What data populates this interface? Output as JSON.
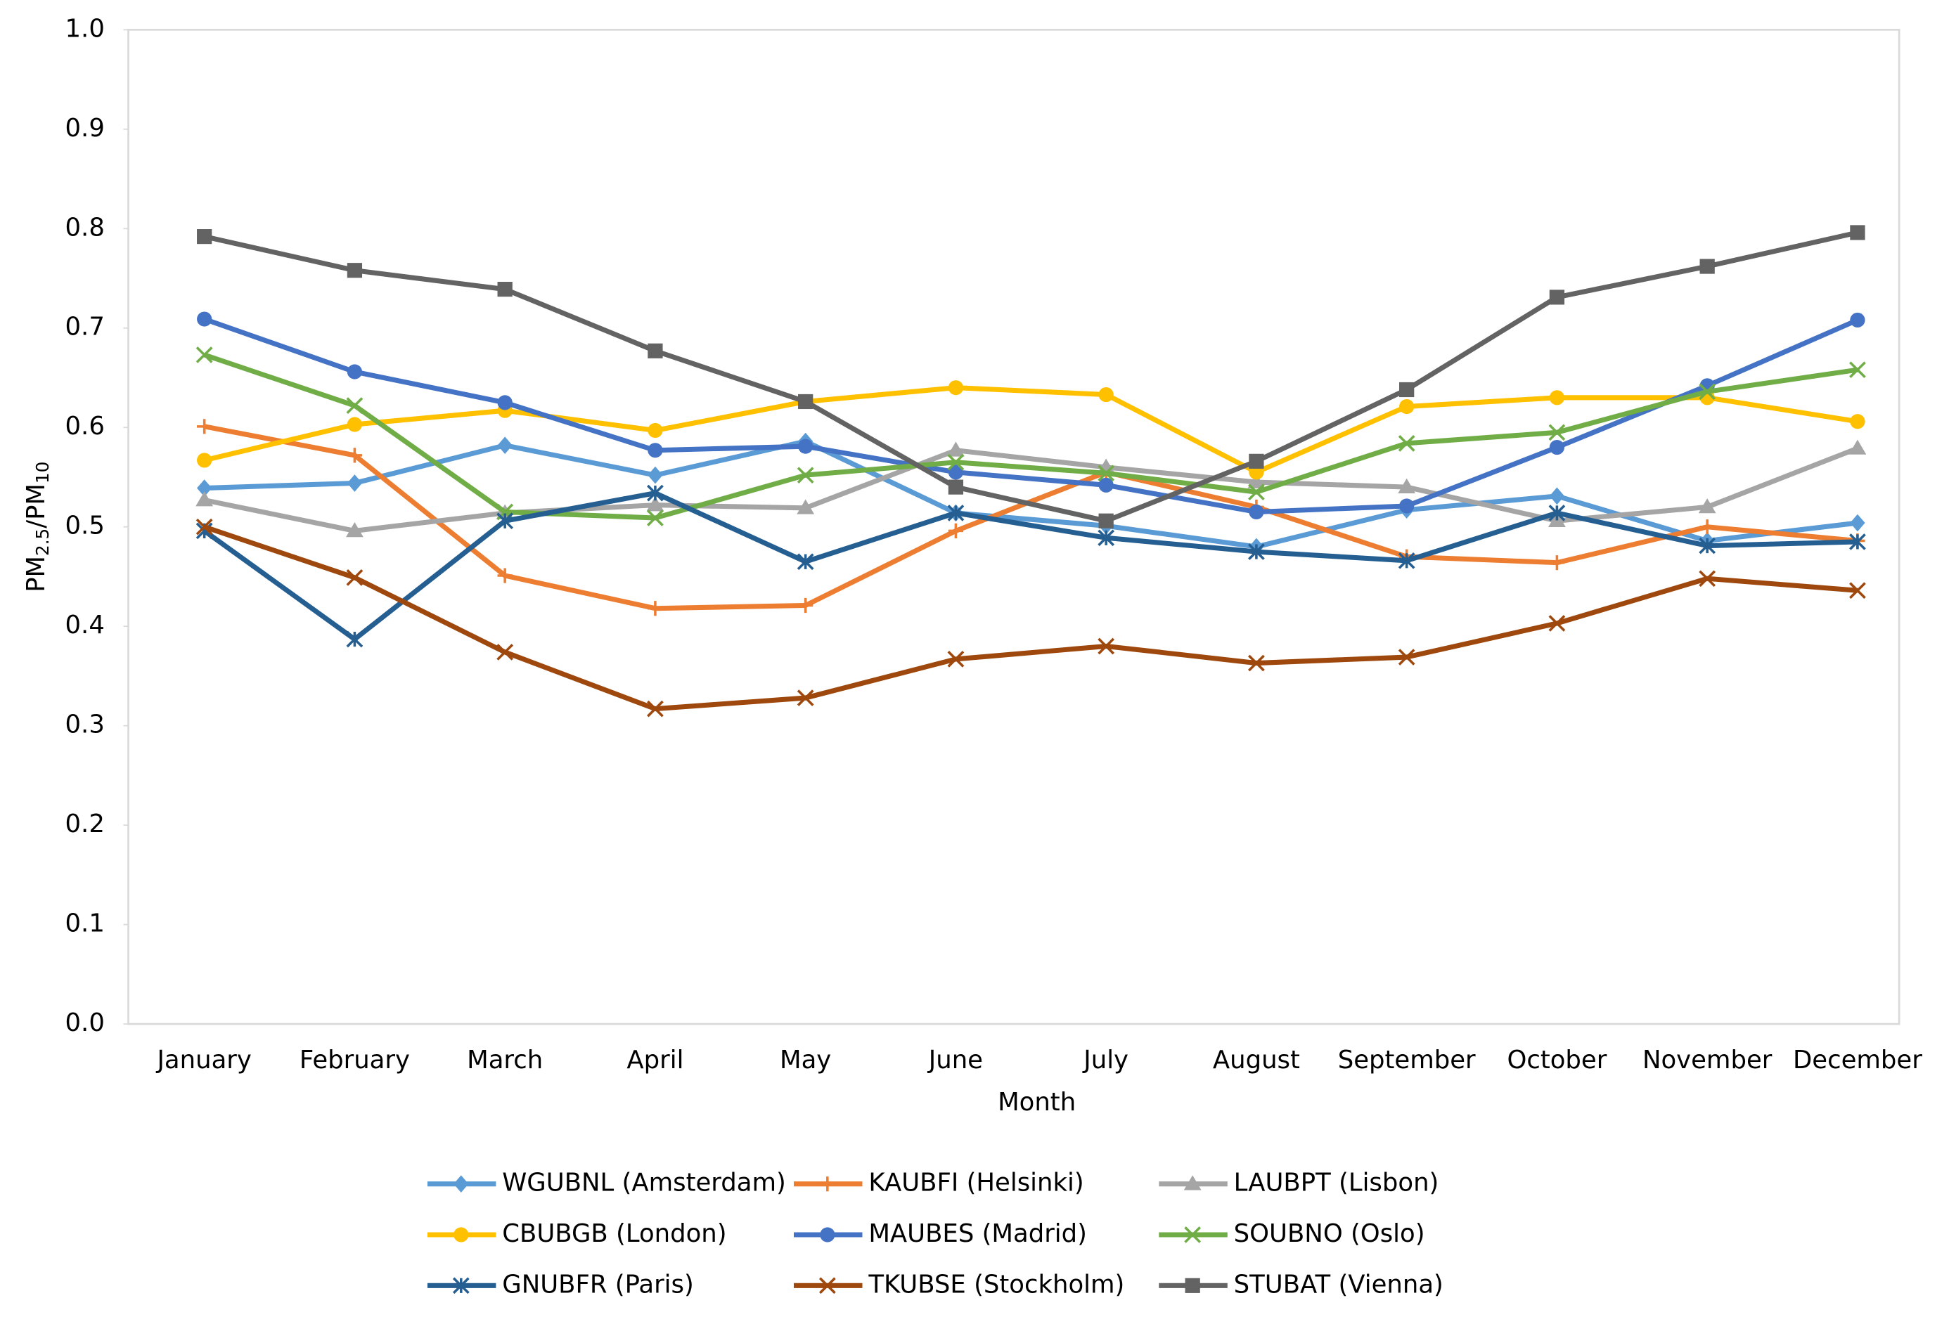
{
  "chart_data": {
    "type": "line",
    "xlabel": "Month",
    "ylabel": [
      "PM",
      "2.5",
      "/PM",
      "10"
    ],
    "categories": [
      "January",
      "February",
      "March",
      "April",
      "May",
      "June",
      "July",
      "August",
      "September",
      "October",
      "November",
      "December"
    ],
    "ylim": [
      0,
      1
    ],
    "yticks": [
      {
        "value": 0,
        "label": "0.0"
      },
      0.1,
      0.2,
      0.3,
      0.4,
      0.5,
      0.6,
      0.7,
      0.8,
      0.9,
      {
        "value": 1,
        "label": "1.0"
      }
    ],
    "grid": false,
    "legend": "bottom",
    "series": [
      {
        "name": "WGUBNL (Amsterdam)",
        "color": "#5b9bd5",
        "marker": "diamond",
        "values": [
          0.539,
          0.544,
          0.582,
          0.552,
          0.586,
          0.514,
          0.501,
          0.48,
          0.517,
          0.531,
          0.486,
          0.504
        ]
      },
      {
        "name": "KAUBFI (Helsinki)",
        "color": "#ed7d31",
        "marker": "plus",
        "values": [
          0.601,
          0.572,
          0.451,
          0.418,
          0.421,
          0.496,
          0.555,
          0.52,
          0.47,
          0.464,
          0.5,
          0.486
        ]
      },
      {
        "name": "LAUBPT (Lisbon)",
        "color": "#a5a5a5",
        "marker": "triangle",
        "values": [
          0.527,
          0.496,
          0.514,
          0.522,
          0.519,
          0.577,
          0.56,
          0.545,
          0.54,
          0.506,
          0.52,
          0.579
        ]
      },
      {
        "name": "CBUBGB (London)",
        "color": "#ffc000",
        "marker": "circle",
        "values": [
          0.567,
          0.603,
          0.617,
          0.597,
          0.626,
          0.64,
          0.633,
          0.555,
          0.621,
          0.63,
          0.63,
          0.606
        ]
      },
      {
        "name": "MAUBES (Madrid)",
        "color": "#4472c4",
        "marker": "circle",
        "values": [
          0.709,
          0.656,
          0.625,
          0.577,
          0.581,
          0.555,
          0.542,
          0.515,
          0.521,
          0.58,
          0.642,
          0.708
        ]
      },
      {
        "name": "SOUBNO (Oslo)",
        "color": "#70ad47",
        "marker": "x",
        "values": [
          0.673,
          0.622,
          0.515,
          0.509,
          0.552,
          0.565,
          0.554,
          0.535,
          0.584,
          0.595,
          0.636,
          0.658
        ]
      },
      {
        "name": "GNUBFR (Paris)",
        "color": "#255e91",
        "marker": "asterisk",
        "values": [
          0.496,
          0.387,
          0.506,
          0.534,
          0.465,
          0.514,
          0.489,
          0.475,
          0.466,
          0.514,
          0.481,
          0.485
        ]
      },
      {
        "name": "TKUBSE (Stockholm)",
        "color": "#9e480e",
        "marker": "x",
        "values": [
          0.5,
          0.449,
          0.374,
          0.317,
          0.328,
          0.367,
          0.38,
          0.363,
          0.369,
          0.403,
          0.448,
          0.436
        ]
      },
      {
        "name": "STUBAT (Vienna)",
        "color": "#636363",
        "marker": "square",
        "values": [
          0.792,
          0.758,
          0.739,
          0.677,
          0.626,
          0.54,
          0.506,
          0.566,
          0.638,
          0.731,
          0.762,
          0.796
        ]
      }
    ]
  }
}
